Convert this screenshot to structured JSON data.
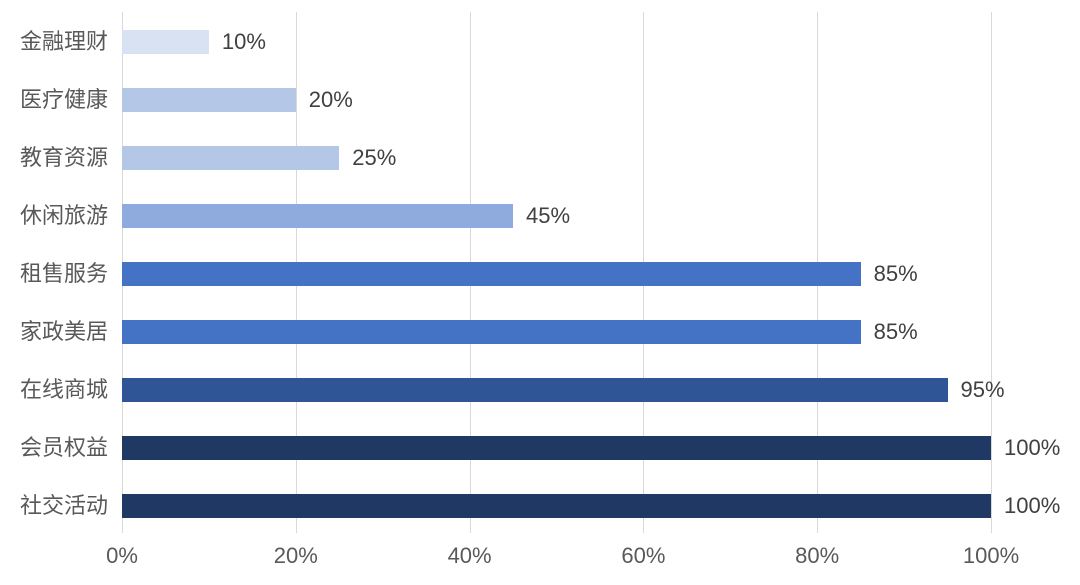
{
  "chart_data": {
    "type": "bar",
    "orientation": "horizontal",
    "title": "",
    "xlabel": "",
    "ylabel": "",
    "categories": [
      "金融理财",
      "医疗健康",
      "教育资源",
      "休闲旅游",
      "租售服务",
      "家政美居",
      "在线商城",
      "会员权益",
      "社交活动"
    ],
    "values": [
      10,
      20,
      25,
      45,
      85,
      85,
      95,
      100,
      100
    ],
    "value_labels": [
      "10%",
      "20%",
      "25%",
      "45%",
      "85%",
      "85%",
      "95%",
      "100%",
      "100%"
    ],
    "bar_colors": [
      "#D9E2F3",
      "#B4C7E7",
      "#B4C7E7",
      "#8FAADC",
      "#4472C4",
      "#4472C4",
      "#2F5597",
      "#1F3864",
      "#1F3864"
    ],
    "x_ticks": [
      "0%",
      "20%",
      "40%",
      "60%",
      "80%",
      "100%"
    ],
    "x_tick_values": [
      0,
      20,
      40,
      60,
      80,
      100
    ],
    "xlim": [
      0,
      100
    ],
    "grid": true,
    "legend": false
  },
  "style": {
    "background": "#FFFFFF",
    "gridline_color": "#D9D9D9",
    "category_label_color": "#595959",
    "axis_label_color": "#595959",
    "value_label_color": "#404040"
  }
}
